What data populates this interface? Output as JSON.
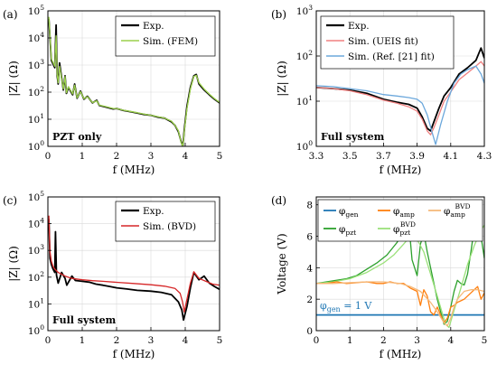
{
  "chart_data": [
    {
      "type": "line",
      "panel_label": "(a)",
      "xlabel": "f (MHz)",
      "ylabel": "|Z| (Ω)",
      "x_ticks": [
        "0",
        "1",
        "2",
        "3",
        "4",
        "5"
      ],
      "y_ticks": [
        "10^0",
        "10^1",
        "10^2",
        "10^3",
        "10^4",
        "10^5"
      ],
      "xlim": [
        0,
        5
      ],
      "ylim": [
        1,
        100000
      ],
      "yscale": "log",
      "legend": "top-right",
      "annotation": "PZT only",
      "series": [
        {
          "name": "Exp.",
          "color": "#000000",
          "x": [
            0.03,
            0.1,
            0.2,
            0.24,
            0.27,
            0.3,
            0.34,
            0.45,
            0.5,
            0.54,
            0.6,
            0.72,
            0.78,
            0.85,
            0.95,
            1.05,
            1.15,
            1.3,
            1.42,
            1.5,
            1.7,
            1.9,
            2.0,
            2.2,
            2.4,
            2.6,
            2.8,
            3.0,
            3.2,
            3.4,
            3.6,
            3.7,
            3.8,
            3.88,
            3.93,
            3.97,
            4.05,
            4.15,
            4.25,
            4.32,
            4.4,
            4.55,
            4.7,
            4.85,
            5.0
          ],
          "y": [
            50000,
            1500,
            800,
            30000,
            400,
            200,
            1200,
            120,
            400,
            90,
            150,
            80,
            200,
            60,
            110,
            55,
            70,
            40,
            50,
            32,
            28,
            24,
            25,
            21,
            19,
            17,
            15,
            14,
            12,
            11,
            8,
            6,
            3.5,
            1.5,
            1.0,
            4,
            30,
            150,
            400,
            450,
            200,
            120,
            80,
            55,
            40
          ]
        },
        {
          "name": "Sim. (FEM)",
          "color": "#9bd14b",
          "x": [
            0.03,
            0.1,
            0.2,
            0.24,
            0.27,
            0.3,
            0.34,
            0.45,
            0.5,
            0.54,
            0.6,
            0.72,
            0.78,
            0.85,
            0.95,
            1.05,
            1.15,
            1.3,
            1.42,
            1.5,
            1.7,
            1.9,
            2.0,
            2.2,
            2.4,
            2.6,
            2.8,
            3.0,
            3.2,
            3.4,
            3.6,
            3.7,
            3.8,
            3.88,
            3.93,
            3.97,
            4.05,
            4.15,
            4.25,
            4.32,
            4.4,
            4.55,
            4.7,
            4.85,
            5.0
          ],
          "y": [
            60000,
            1700,
            900,
            12000,
            450,
            220,
            900,
            130,
            380,
            95,
            160,
            85,
            180,
            62,
            105,
            57,
            68,
            41,
            48,
            33,
            29,
            25,
            25,
            21.5,
            19.5,
            17.5,
            15.5,
            14,
            12.5,
            11,
            8.5,
            6,
            3.8,
            1.4,
            1.0,
            3.5,
            25,
            130,
            380,
            420,
            220,
            130,
            85,
            58,
            42
          ]
        }
      ]
    },
    {
      "type": "line",
      "panel_label": "(b)",
      "xlabel": "f (MHz)",
      "ylabel": "|Z| (Ω)",
      "x_ticks": [
        "3.3",
        "3.5",
        "3.7",
        "3.9",
        "4.1",
        "4.3"
      ],
      "y_ticks": [
        "10^0",
        "10^1",
        "10^2",
        "10^3"
      ],
      "xlim": [
        3.3,
        4.3
      ],
      "ylim": [
        1,
        1000
      ],
      "yscale": "log",
      "legend": "top-left",
      "annotation": "Full system",
      "series": [
        {
          "name": "Exp.",
          "color": "#000000",
          "x": [
            3.3,
            3.4,
            3.5,
            3.6,
            3.7,
            3.78,
            3.85,
            3.9,
            3.93,
            3.96,
            3.98,
            4.0,
            4.03,
            4.06,
            4.1,
            4.15,
            4.2,
            4.25,
            4.28,
            4.3
          ],
          "y": [
            20,
            19,
            17.5,
            15,
            11,
            9.5,
            8.5,
            7,
            4.5,
            2.5,
            2.2,
            3.5,
            7,
            13,
            20,
            40,
            55,
            80,
            150,
            90
          ]
        },
        {
          "name": "Sim. (UEIS fit)",
          "color": "#f08080",
          "x": [
            3.3,
            3.4,
            3.5,
            3.6,
            3.7,
            3.78,
            3.85,
            3.9,
            3.93,
            3.96,
            3.98,
            4.0,
            4.03,
            4.06,
            4.1,
            4.15,
            4.2,
            4.25,
            4.28,
            4.3
          ],
          "y": [
            20,
            19,
            17,
            14,
            10.5,
            9,
            7.5,
            6,
            4,
            2.2,
            1.8,
            2.6,
            5,
            10,
            16,
            30,
            42,
            60,
            75,
            60
          ]
        },
        {
          "name": "Sim. (Ref. [21] fit)",
          "color": "#6ca8dc",
          "x": [
            3.3,
            3.4,
            3.5,
            3.6,
            3.7,
            3.78,
            3.85,
            3.9,
            3.93,
            3.96,
            3.99,
            4.01,
            4.04,
            4.08,
            4.12,
            4.16,
            4.2,
            4.25,
            4.28,
            4.3
          ],
          "y": [
            22,
            21,
            19,
            17,
            14,
            13,
            12,
            11,
            9,
            5,
            2,
            1.1,
            3,
            10,
            25,
            40,
            50,
            60,
            40,
            25
          ]
        }
      ]
    },
    {
      "type": "line",
      "panel_label": "(c)",
      "xlabel": "f (MHz)",
      "ylabel": "|Z| (Ω)",
      "x_ticks": [
        "0",
        "1",
        "2",
        "3",
        "4",
        "5"
      ],
      "y_ticks": [
        "10^0",
        "10^1",
        "10^2",
        "10^3",
        "10^4",
        "10^5"
      ],
      "xlim": [
        0,
        5
      ],
      "ylim": [
        1,
        100000
      ],
      "yscale": "log",
      "legend": "top-right",
      "annotation": "Full system",
      "series": [
        {
          "name": "Exp.",
          "color": "#000000",
          "x": [
            0.03,
            0.06,
            0.1,
            0.15,
            0.2,
            0.22,
            0.25,
            0.3,
            0.4,
            0.5,
            0.55,
            0.7,
            0.8,
            1.0,
            1.2,
            1.4,
            1.6,
            1.8,
            2.0,
            2.3,
            2.6,
            3.0,
            3.3,
            3.6,
            3.8,
            3.9,
            3.95,
            4.05,
            4.15,
            4.25,
            4.4,
            4.55,
            4.7,
            4.85,
            5.0
          ],
          "y": [
            15000,
            500,
            300,
            200,
            150,
            5000,
            120,
            60,
            150,
            90,
            50,
            110,
            75,
            70,
            65,
            55,
            50,
            45,
            40,
            36,
            32,
            30,
            27,
            22,
            12,
            6,
            2.5,
            8,
            40,
            150,
            80,
            110,
            60,
            45,
            35
          ]
        },
        {
          "name": "Sim. (BVD)",
          "color": "#d62728",
          "x": [
            0.03,
            0.06,
            0.1,
            0.15,
            0.2,
            0.3,
            0.5,
            0.7,
            1.0,
            1.3,
            1.6,
            2.0,
            2.5,
            3.0,
            3.4,
            3.7,
            3.85,
            3.92,
            3.97,
            4.05,
            4.15,
            4.25,
            4.4,
            4.6,
            4.8,
            5.0
          ],
          "y": [
            20000,
            900,
            400,
            250,
            200,
            150,
            110,
            90,
            80,
            74,
            70,
            64,
            58,
            52,
            46,
            38,
            25,
            12,
            5,
            15,
            60,
            160,
            90,
            70,
            55,
            50
          ]
        }
      ]
    },
    {
      "type": "line",
      "panel_label": "(d)",
      "xlabel": "f (MHz)",
      "ylabel": "Voltage (V)",
      "x_ticks": [
        "0",
        "1",
        "2",
        "3",
        "4",
        "5"
      ],
      "y_ticks": [
        "0",
        "2",
        "4",
        "6",
        "8"
      ],
      "xlim": [
        0,
        5
      ],
      "ylim": [
        0,
        8.5
      ],
      "yscale": "linear",
      "legend": "top",
      "annotation": "φgen = 1 V",
      "series": [
        {
          "name": "φgen",
          "color": "#1f77b4",
          "x": [
            0,
            5
          ],
          "y": [
            1,
            1
          ]
        },
        {
          "name": "φpzt",
          "color": "#2ca02c",
          "x": [
            0.0,
            0.3,
            0.6,
            0.9,
            1.2,
            1.5,
            1.8,
            2.1,
            2.4,
            2.6,
            2.75,
            2.85,
            3.0,
            3.1,
            3.2,
            3.3,
            3.4,
            3.5,
            3.6,
            3.7,
            3.8,
            3.9,
            4.0,
            4.1,
            4.2,
            4.3,
            4.4,
            4.5,
            4.6,
            4.7,
            4.8,
            4.85,
            4.9,
            5.0
          ],
          "y": [
            3.0,
            3.1,
            3.2,
            3.3,
            3.5,
            3.9,
            4.3,
            4.8,
            5.6,
            6.3,
            6.9,
            4.5,
            3.5,
            5.5,
            6.2,
            5.0,
            4.0,
            3.0,
            2.0,
            1.2,
            0.4,
            0.6,
            1.5,
            2.5,
            3.2,
            3.0,
            2.9,
            3.6,
            5.0,
            6.5,
            8.2,
            7.8,
            6.0,
            4.6
          ]
        },
        {
          "name": "φpzt^BVD",
          "color": "#9be17a",
          "x": [
            0.0,
            0.5,
            1.0,
            1.5,
            2.0,
            2.3,
            2.6,
            2.8,
            3.0,
            3.2,
            3.4,
            3.6,
            3.75,
            3.85,
            3.95,
            4.1,
            4.3,
            4.5,
            4.7,
            4.9,
            5.0
          ],
          "y": [
            3.0,
            3.1,
            3.3,
            3.7,
            4.3,
            4.8,
            5.5,
            6.0,
            5.8,
            5.0,
            3.6,
            2.2,
            1.1,
            0.4,
            0.2,
            1.3,
            2.7,
            4.2,
            5.4,
            6.4,
            6.7
          ]
        },
        {
          "name": "φamp",
          "color": "#ff7f0e",
          "x": [
            0.0,
            0.3,
            0.6,
            0.9,
            1.2,
            1.5,
            1.8,
            2.0,
            2.2,
            2.4,
            2.6,
            2.8,
            3.0,
            3.1,
            3.2,
            3.3,
            3.4,
            3.5,
            3.6,
            3.7,
            3.8,
            3.9,
            4.0,
            4.1,
            4.2,
            4.4,
            4.6,
            4.8,
            4.9,
            5.0
          ],
          "y": [
            3.0,
            3.0,
            3.1,
            3.0,
            3.05,
            3.1,
            3.0,
            3.0,
            3.1,
            3.0,
            3.0,
            2.7,
            2.5,
            1.6,
            2.6,
            2.2,
            1.2,
            1.0,
            1.5,
            1.0,
            0.5,
            0.8,
            1.5,
            1.6,
            1.8,
            2.0,
            2.4,
            2.8,
            2.0,
            2.4
          ]
        },
        {
          "name": "φamp^BVD",
          "color": "#f5b97a",
          "x": [
            0.0,
            0.5,
            1.0,
            1.5,
            2.0,
            2.5,
            2.8,
            3.1,
            3.4,
            3.6,
            3.8,
            3.9,
            4.0,
            4.1,
            4.2,
            4.4,
            4.6,
            4.8,
            5.0
          ],
          "y": [
            3.0,
            3.0,
            3.05,
            3.1,
            3.1,
            3.0,
            2.8,
            2.5,
            1.8,
            1.2,
            0.5,
            0.3,
            0.8,
            1.5,
            2.0,
            2.5,
            2.6,
            2.6,
            2.5
          ]
        }
      ]
    }
  ]
}
